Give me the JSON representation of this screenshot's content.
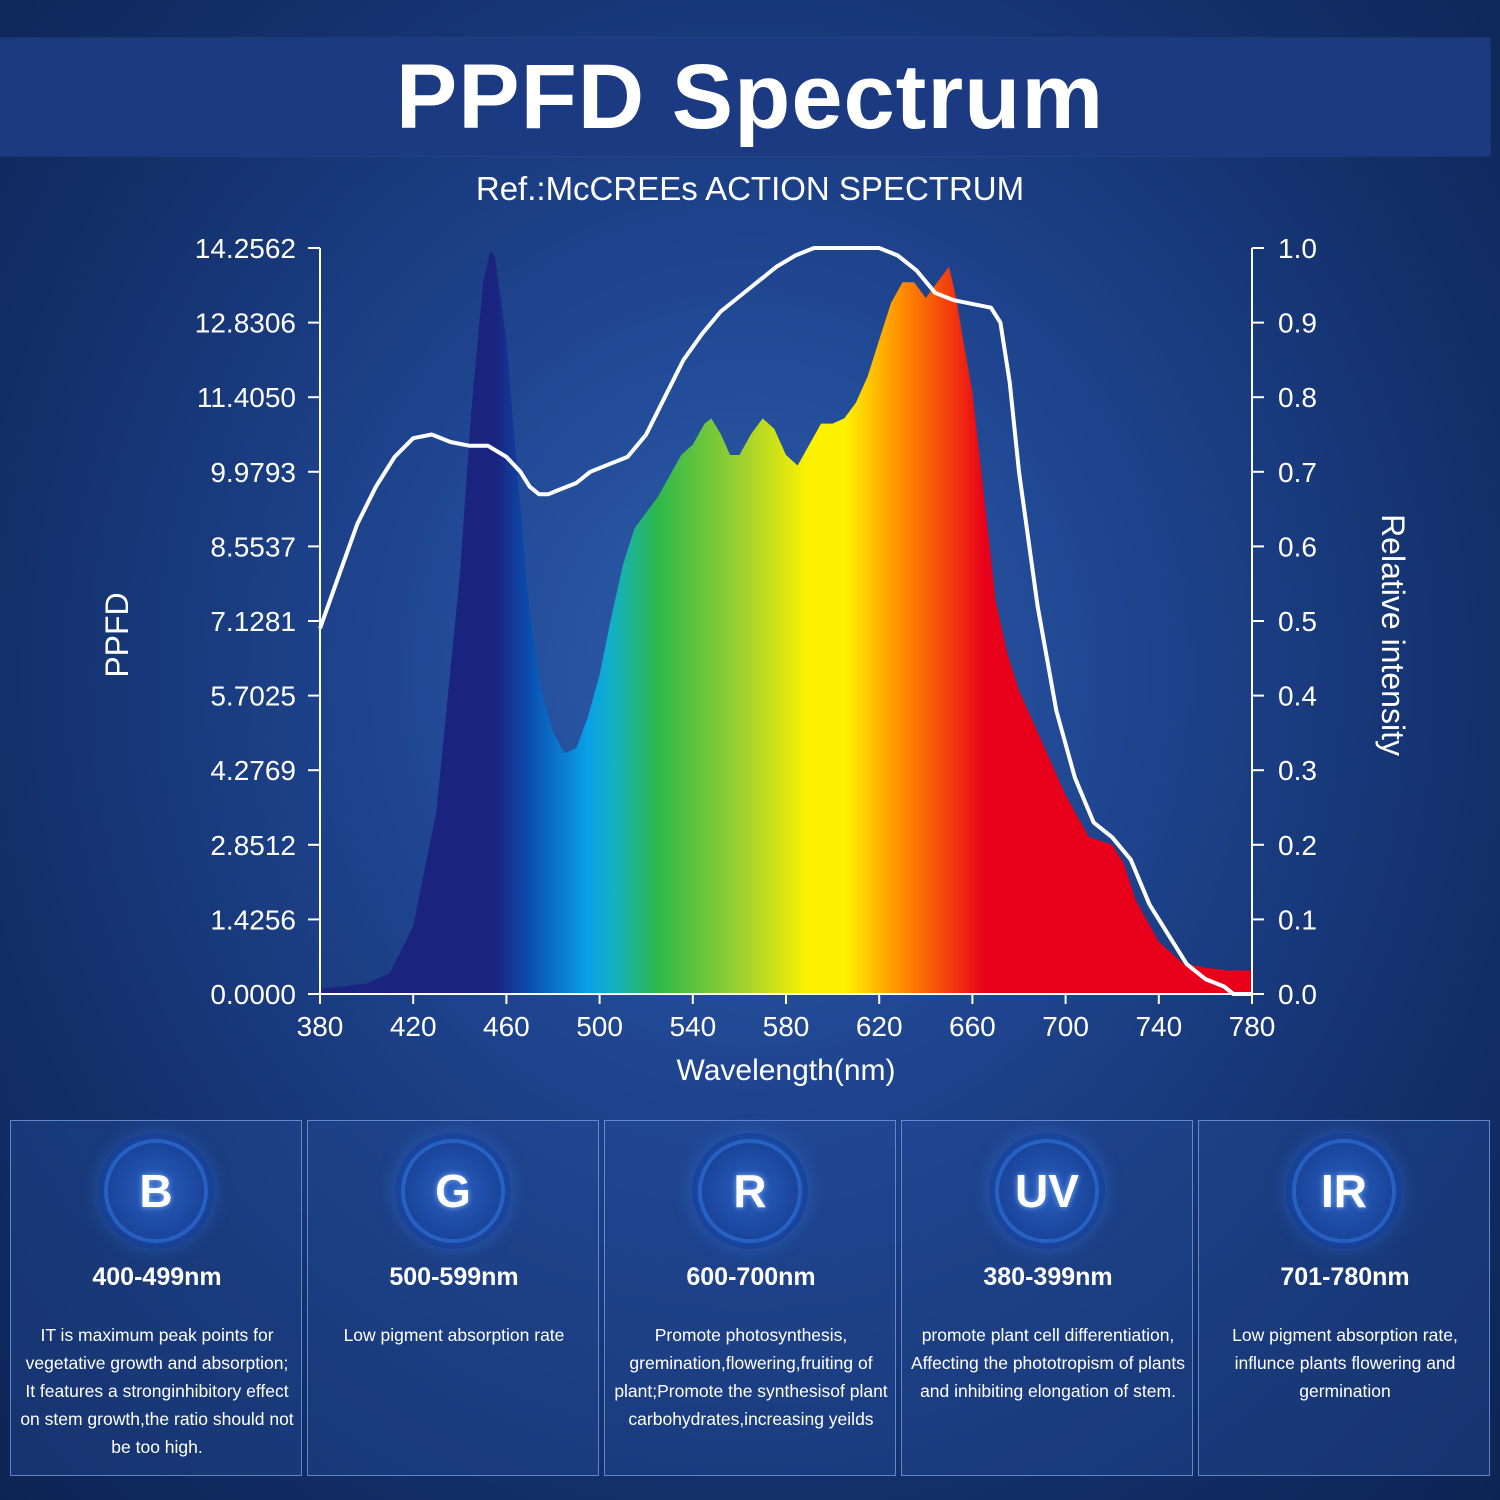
{
  "header": {
    "title": "PPFD Spectrum",
    "subtitle": "Ref.:McCREEs ACTION SPECTRUM"
  },
  "chart_data": {
    "type": "area",
    "xlabel": "Wavelength(nm)",
    "ylabel": "PPFD",
    "y2label": "Relative intensity",
    "xlim": [
      380,
      780
    ],
    "ylim": [
      0,
      14.2562
    ],
    "y2lim": [
      0,
      1.0
    ],
    "x_ticks": [
      380,
      420,
      460,
      500,
      540,
      580,
      620,
      660,
      700,
      740,
      780
    ],
    "y_ticks": [
      "0.0000",
      "1.4256",
      "2.8512",
      "4.2769",
      "5.7025",
      "7.1281",
      "8.5537",
      "9.9793",
      "11.4050",
      "12.8306",
      "14.2562"
    ],
    "y2_ticks": [
      "0.0",
      "0.1",
      "0.2",
      "0.3",
      "0.4",
      "0.5",
      "0.6",
      "0.7",
      "0.8",
      "0.9",
      "1.0"
    ],
    "grid": false,
    "series": [
      {
        "name": "",
        "kind": "filled spectrum (color-graded by wavelength)",
        "axis": "left",
        "x": [
          380,
          390,
          400,
          410,
          420,
          430,
          440,
          445,
          450,
          453,
          455,
          460,
          465,
          470,
          475,
          480,
          485,
          490,
          495,
          500,
          505,
          510,
          515,
          520,
          525,
          530,
          535,
          540,
          545,
          548,
          552,
          556,
          560,
          565,
          570,
          575,
          580,
          585,
          590,
          595,
          600,
          605,
          610,
          615,
          620,
          625,
          630,
          635,
          640,
          645,
          650,
          653,
          656,
          660,
          665,
          670,
          675,
          680,
          690,
          700,
          710,
          720,
          725,
          730,
          740,
          750,
          760,
          770,
          780
        ],
        "y": [
          0.1,
          0.15,
          0.2,
          0.4,
          1.3,
          3.5,
          8.0,
          11.2,
          13.6,
          14.2,
          14.1,
          12.5,
          9.8,
          7.3,
          5.8,
          5.0,
          4.6,
          4.7,
          5.3,
          6.1,
          7.2,
          8.2,
          8.9,
          9.2,
          9.5,
          9.9,
          10.3,
          10.5,
          10.9,
          11.0,
          10.7,
          10.3,
          10.3,
          10.7,
          11.0,
          10.8,
          10.3,
          10.1,
          10.5,
          10.9,
          10.9,
          11.0,
          11.3,
          11.8,
          12.5,
          13.2,
          13.6,
          13.6,
          13.3,
          13.6,
          13.9,
          13.3,
          12.5,
          11.5,
          9.5,
          7.5,
          6.5,
          5.8,
          4.8,
          3.8,
          3.0,
          2.85,
          2.5,
          1.8,
          1.0,
          0.6,
          0.5,
          0.45,
          0.45
        ]
      },
      {
        "name": "",
        "kind": "white line (McCree action spectrum)",
        "axis": "right",
        "x": [
          380,
          388,
          396,
          404,
          412,
          420,
          428,
          436,
          444,
          452,
          460,
          466,
          470,
          474,
          478,
          482,
          490,
          496,
          504,
          512,
          520,
          528,
          536,
          544,
          552,
          560,
          568,
          576,
          584,
          592,
          598,
          604,
          612,
          620,
          628,
          636,
          644,
          652,
          660,
          668,
          672,
          676,
          680,
          688,
          696,
          704,
          712,
          720,
          728,
          736,
          744,
          752,
          760,
          768,
          772,
          776,
          780
        ],
        "y": [
          0.49,
          0.56,
          0.63,
          0.68,
          0.72,
          0.745,
          0.75,
          0.74,
          0.735,
          0.735,
          0.72,
          0.7,
          0.68,
          0.67,
          0.67,
          0.675,
          0.685,
          0.7,
          0.71,
          0.72,
          0.75,
          0.8,
          0.85,
          0.885,
          0.915,
          0.935,
          0.955,
          0.975,
          0.99,
          1.0,
          1.0,
          1.0,
          1.0,
          1.0,
          0.99,
          0.97,
          0.94,
          0.93,
          0.925,
          0.92,
          0.9,
          0.82,
          0.7,
          0.52,
          0.38,
          0.29,
          0.23,
          0.21,
          0.18,
          0.12,
          0.08,
          0.04,
          0.02,
          0.01,
          0.0,
          0.0,
          0.0
        ]
      }
    ]
  },
  "cards": [
    {
      "badge": "B",
      "range": "400-499nm",
      "desc": "IT is maximum peak points for vegetative growth and absorption; It features a stronginhibitory effect on stem growth,the ratio should not be too high."
    },
    {
      "badge": "G",
      "range": "500-599nm",
      "desc": "Low pigment absorption rate"
    },
    {
      "badge": "R",
      "range": "600-700nm",
      "desc": "Promote photosynthesis, gremination,flowering,fruiting of plant;Promote the synthesisof plant carbohydrates,increasing yeilds"
    },
    {
      "badge": "UV",
      "range": "380-399nm",
      "desc": "promote plant cell differentiation, Affecting the phototropism of plants and inhibiting elongation of stem."
    },
    {
      "badge": "IR",
      "range": "701-780nm",
      "desc": "Low pigment absorption rate, influnce plants flowering and germination"
    }
  ],
  "colors": {
    "background": "#13306b",
    "title_band": "#1b3a82",
    "line": "#ffffff",
    "spectrum_blue": "#1a237e",
    "spectrum_cyan": "#0aa0e8",
    "spectrum_green": "#2db84a",
    "spectrum_yellow": "#fff200",
    "spectrum_orange": "#ff8c00",
    "spectrum_red": "#e8001a"
  }
}
